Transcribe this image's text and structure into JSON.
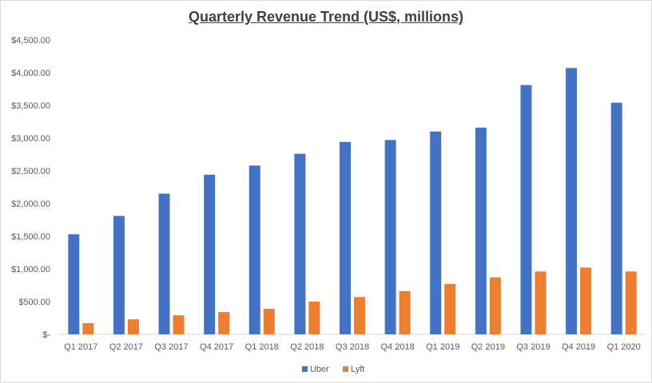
{
  "chart_data": {
    "type": "bar",
    "title": "Quarterly Revenue Trend (US$, millions)",
    "xlabel": "",
    "ylabel": "",
    "categories": [
      "Q1 2017",
      "Q2 2017",
      "Q3 2017",
      "Q4 2017",
      "Q1 2018",
      "Q2 2018",
      "Q3 2018",
      "Q4 2018",
      "Q1 2019",
      "Q2 2019",
      "Q3 2019",
      "Q4 2019",
      "Q1 2020"
    ],
    "series": [
      {
        "name": "Uber",
        "color": "#4472c4",
        "values": [
          1530,
          1810,
          2150,
          2440,
          2580,
          2760,
          2940,
          2970,
          3100,
          3160,
          3810,
          4070,
          3540
        ]
      },
      {
        "name": "Lyft",
        "color": "#ed7d31",
        "values": [
          170,
          230,
          290,
          340,
          390,
          500,
          570,
          660,
          770,
          870,
          960,
          1020,
          960
        ]
      }
    ],
    "ylim": [
      0,
      4500
    ],
    "yticks": [
      0,
      500,
      1000,
      1500,
      2000,
      2500,
      3000,
      3500,
      4000,
      4500
    ],
    "ytick_labels": [
      "$-",
      "$500.00",
      "$1,000.00",
      "$1,500.00",
      "$2,000.00",
      "$2,500.00",
      "$3,000.00",
      "$3,500.00",
      "$4,000.00",
      "$4,500.00"
    ],
    "grid": false,
    "legend_position": "bottom"
  }
}
